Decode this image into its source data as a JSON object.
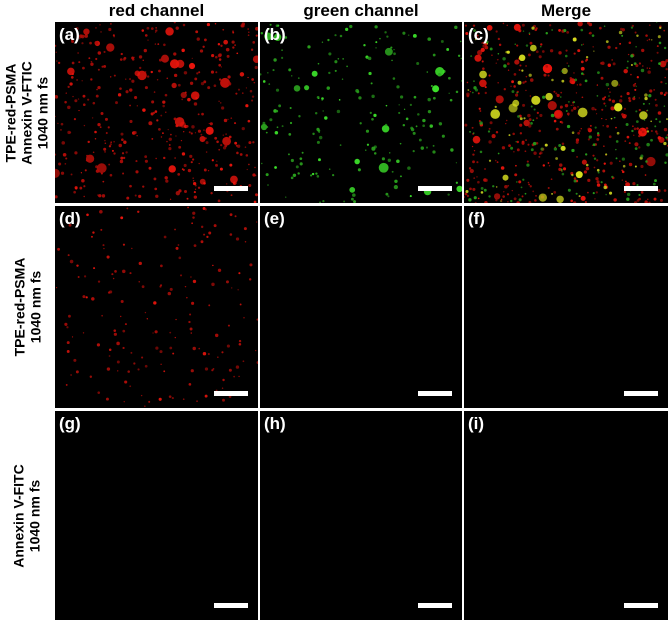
{
  "columns": [
    "red channel",
    "green channel",
    "Merge"
  ],
  "rows": [
    {
      "label_lines": [
        "TPE-red-PSMA",
        "Annexin V-FTIC",
        "1040 nm fs"
      ],
      "panels": [
        "(a)",
        "(b)",
        "(c)"
      ]
    },
    {
      "label_lines": [
        "TPE-red-PSMA",
        "1040 nm fs"
      ],
      "panels": [
        "(d)",
        "(e)",
        "(f)"
      ]
    },
    {
      "label_lines": [
        "Annexin V-FITC",
        "1040 nm fs"
      ],
      "panels": [
        "(g)",
        "(h)",
        "(i)"
      ]
    }
  ]
}
